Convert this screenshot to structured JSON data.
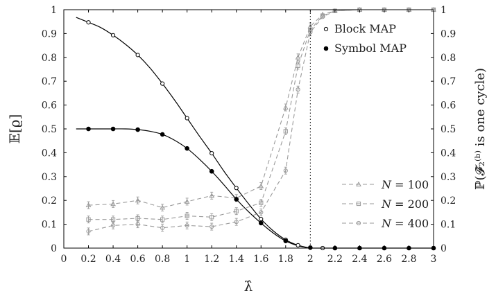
{
  "chart_data": {
    "type": "line",
    "xlabel": "λ̂",
    "ylabel_left": "𝔼[ϱ]",
    "ylabel_right": "ℙ(𝓕̂₂⁽ᵇ⁾ is one cycle)",
    "xlim": [
      0,
      3
    ],
    "ylim_left": [
      0,
      1
    ],
    "ylim_right": [
      0,
      1
    ],
    "x_ticks": [
      0,
      0.2,
      0.4,
      0.6,
      0.8,
      1,
      1.2,
      1.4,
      1.6,
      1.8,
      2,
      2.2,
      2.4,
      2.6,
      2.8,
      3
    ],
    "x_tick_labels": [
      "0",
      "0.2",
      "0.4",
      "0.6",
      "0.8",
      "1",
      "1.2",
      "1.4",
      "1.6",
      "1.8",
      "2",
      "2.2",
      "2.4",
      "2.6",
      "2.8",
      "3"
    ],
    "y_ticks": [
      0,
      0.1,
      0.2,
      0.3,
      0.4,
      0.5,
      0.6,
      0.7,
      0.8,
      0.9,
      1
    ],
    "y_tick_labels": [
      "0",
      "0.1",
      "0.2",
      "0.3",
      "0.4",
      "0.5",
      "0.6",
      "0.7",
      "0.8",
      "0.9",
      "1"
    ],
    "vertical_line_x": 2,
    "grid": false,
    "legend_top": {
      "placement": "top-right",
      "items": [
        {
          "marker": "open-circle",
          "label": "Block MAP"
        },
        {
          "marker": "filled-circle",
          "label": "Symbol MAP"
        }
      ]
    },
    "legend_bottom": {
      "placement": "bottom-right",
      "items": [
        {
          "marker": "triangle",
          "label_italic": "N",
          "label_rest": " = 100"
        },
        {
          "marker": "square",
          "label_italic": "N",
          "label_rest": " = 200"
        },
        {
          "marker": "circle",
          "label_italic": "N",
          "label_rest": " = 400"
        }
      ]
    },
    "theory_curves": [
      {
        "name": "Block MAP",
        "color": "#000000",
        "x": [
          0.1,
          0.2,
          0.3,
          0.4,
          0.5,
          0.6,
          0.7,
          0.8,
          0.9,
          1.0,
          1.1,
          1.2,
          1.3,
          1.4,
          1.5,
          1.6,
          1.7,
          1.8,
          1.9,
          2.0
        ],
        "y": [
          0.968,
          0.947,
          0.925,
          0.893,
          0.855,
          0.81,
          0.755,
          0.69,
          0.62,
          0.545,
          0.47,
          0.398,
          0.322,
          0.252,
          0.185,
          0.122,
          0.072,
          0.035,
          0.012,
          0.0
        ]
      },
      {
        "name": "Symbol MAP",
        "color": "#000000",
        "x": [
          0.1,
          0.2,
          0.3,
          0.4,
          0.5,
          0.6,
          0.7,
          0.8,
          0.9,
          1.0,
          1.1,
          1.2,
          1.3,
          1.4,
          1.5,
          1.6,
          1.7,
          1.8,
          1.9,
          2.0
        ],
        "y": [
          0.5,
          0.5,
          0.5,
          0.5,
          0.5,
          0.497,
          0.49,
          0.477,
          0.452,
          0.418,
          0.373,
          0.322,
          0.265,
          0.205,
          0.152,
          0.105,
          0.063,
          0.03,
          0.01,
          0.0
        ]
      }
    ],
    "theory_markers": [
      {
        "name": "Block MAP",
        "marker": "open-circle",
        "x": [
          0.2,
          0.4,
          0.6,
          0.8,
          1.0,
          1.2,
          1.4,
          1.6,
          1.8,
          1.9,
          2.0,
          2.1
        ],
        "y": [
          0.947,
          0.893,
          0.81,
          0.69,
          0.545,
          0.398,
          0.252,
          0.122,
          0.035,
          0.012,
          0.002,
          0.0
        ]
      },
      {
        "name": "Symbol MAP",
        "marker": "filled-circle",
        "x": [
          0.2,
          0.4,
          0.6,
          0.8,
          1.0,
          1.2,
          1.4,
          1.6,
          1.8,
          2.0,
          2.2,
          2.4,
          2.6,
          2.8,
          3.0
        ],
        "y": [
          0.5,
          0.5,
          0.497,
          0.477,
          0.418,
          0.322,
          0.205,
          0.105,
          0.03,
          0.002,
          0.0,
          0.0,
          0.0,
          0.0,
          0.0
        ]
      }
    ],
    "simulation_series": [
      {
        "name": "N = 100",
        "marker": "triangle",
        "color": "#999999",
        "x": [
          0.2,
          0.4,
          0.6,
          0.8,
          1.0,
          1.2,
          1.4,
          1.6,
          1.8,
          1.9,
          2.0,
          2.1,
          2.2,
          2.4,
          2.6,
          2.8,
          3.0
        ],
        "y": [
          0.18,
          0.185,
          0.2,
          0.17,
          0.195,
          0.22,
          0.21,
          0.26,
          0.59,
          0.8,
          0.93,
          0.98,
          0.995,
          1.0,
          1.0,
          1.0,
          1.0
        ]
      },
      {
        "name": "N = 200",
        "marker": "square",
        "color": "#999999",
        "x": [
          0.2,
          0.4,
          0.6,
          0.8,
          1.0,
          1.2,
          1.4,
          1.6,
          1.8,
          1.9,
          2.0,
          2.1,
          2.2,
          2.4,
          2.6,
          2.8,
          3.0
        ],
        "y": [
          0.12,
          0.12,
          0.125,
          0.12,
          0.135,
          0.13,
          0.155,
          0.19,
          0.49,
          0.765,
          0.915,
          0.975,
          0.995,
          1.0,
          1.0,
          1.0,
          1.0
        ]
      },
      {
        "name": "N = 400",
        "marker": "circle",
        "color": "#999999",
        "x": [
          0.2,
          0.4,
          0.6,
          0.8,
          1.0,
          1.2,
          1.4,
          1.6,
          1.8,
          1.9,
          2.0,
          2.1,
          2.2,
          2.4,
          2.6,
          2.8,
          3.0
        ],
        "y": [
          0.07,
          0.095,
          0.1,
          0.085,
          0.095,
          0.09,
          0.11,
          0.15,
          0.325,
          0.665,
          0.905,
          0.97,
          0.995,
          1.0,
          1.0,
          1.0,
          1.0
        ]
      }
    ]
  }
}
